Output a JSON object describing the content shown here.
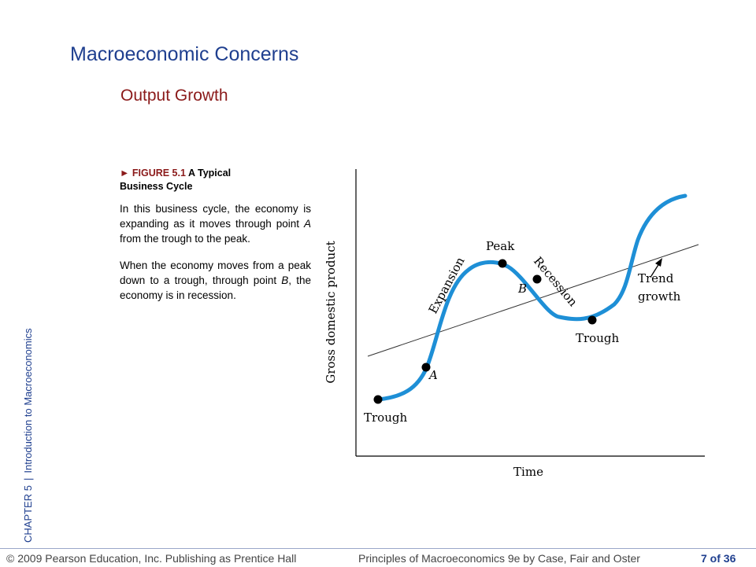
{
  "slide": {
    "title": "Macroeconomic Concerns",
    "subtitle": "Output Growth"
  },
  "sidebar": {
    "chapter": "CHAPTER 5",
    "topic": "Introduction to Macroeconomics"
  },
  "figure": {
    "marker": "►",
    "number": "FIGURE 5.1",
    "title_line1": "A Typical",
    "title_line2": "Business Cycle",
    "para1_a": "In this business cycle, the economy is expanding as it moves through point ",
    "para1_point": "A",
    "para1_b": " from the trough to the peak.",
    "para2_a": "When the economy moves from a peak down to a trough, through point ",
    "para2_point": "B",
    "para2_b": ", the economy is in recession."
  },
  "diagram": {
    "y_axis_label": "Gross domestic product",
    "x_axis_label": "Time",
    "labels": {
      "peak": "Peak",
      "expansion": "Expansion",
      "recession": "Recession",
      "trough_left": "Trough",
      "trough_right": "Trough",
      "point_a": "A",
      "point_b": "B",
      "trend_line1": "Trend",
      "trend_line2": "growth"
    },
    "colors": {
      "curve": "#1e8fd6",
      "trend": "#333333",
      "point": "#000000"
    }
  },
  "footer": {
    "copyright": "© 2009 Pearson Education, Inc. Publishing as Prentice Hall",
    "book": "Principles of Macroeconomics 9e by Case, Fair and Oster",
    "page": "7 of 36"
  }
}
